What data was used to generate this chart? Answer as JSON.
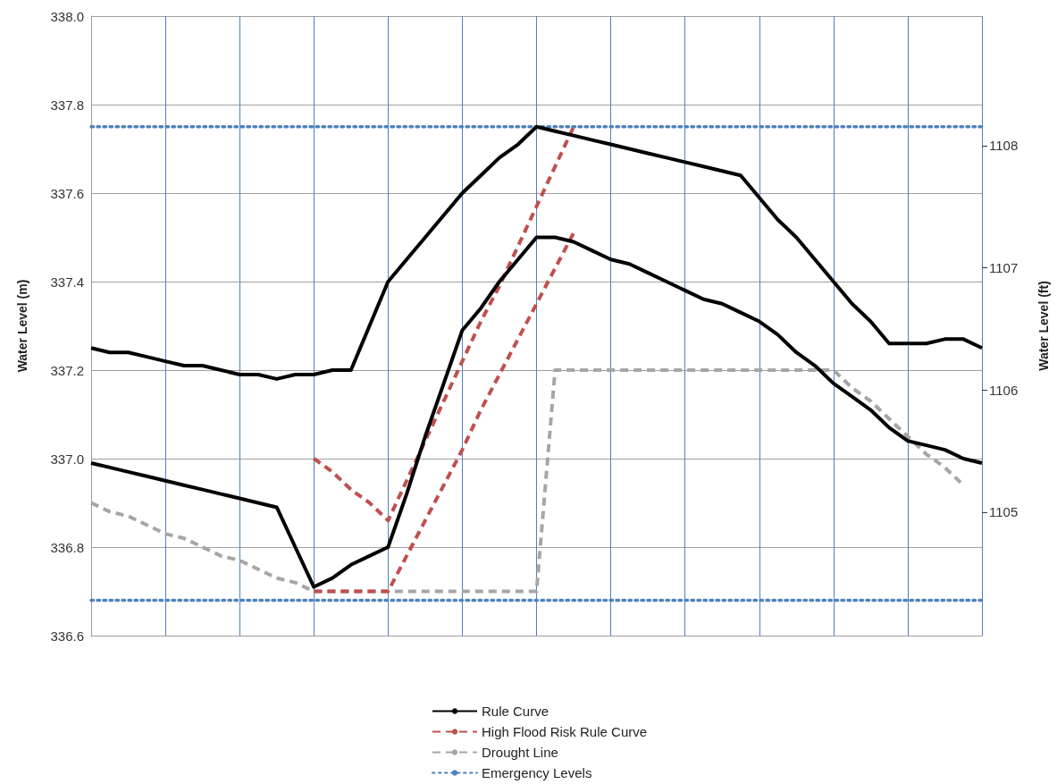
{
  "chart_data": {
    "type": "line",
    "ylabel": "Water Level (m)",
    "y2label": "Water Level (ft)",
    "categories": [
      null,
      null,
      null,
      null,
      null,
      null,
      null,
      null,
      null,
      null,
      null,
      null,
      null,
      null,
      null,
      null,
      null,
      null,
      null,
      null,
      null,
      null,
      null,
      null,
      null,
      null,
      null,
      null,
      null,
      null,
      null,
      null,
      null,
      null,
      null,
      null,
      null,
      null,
      null,
      null,
      null,
      null,
      null,
      null,
      null,
      null,
      null,
      null,
      null
    ],
    "ylim": [
      336.6,
      338.0
    ],
    "yticks": [
      {
        "value": 336.6,
        "label": "336.6"
      },
      {
        "value": 336.8,
        "label": "336.8"
      },
      {
        "value": 337.0,
        "label": "337.0"
      },
      {
        "value": 337.2,
        "label": "337.2"
      },
      {
        "value": 337.4,
        "label": "337.4"
      },
      {
        "value": 337.6,
        "label": "337.6"
      },
      {
        "value": 337.8,
        "label": "337.8"
      },
      {
        "value": 338.0,
        "label": "338.0"
      }
    ],
    "y2lim": [
      1103.99,
      1109.06
    ],
    "y2ticks": [
      1105,
      1106,
      1107,
      1108
    ],
    "tick_labels": "y",
    "grid": true,
    "legend": "bottom",
    "marker": "none",
    "series": [
      {
        "name": "Rule Curve",
        "color": "#000000",
        "line_style": "solid",
        "values": [
          337.25,
          337.24,
          337.24,
          337.23,
          337.22,
          337.21,
          337.21,
          337.2,
          337.19,
          337.19,
          337.18,
          337.19,
          337.19,
          337.2,
          337.2,
          337.3,
          337.4,
          337.45,
          337.5,
          337.55,
          337.6,
          337.64,
          337.68,
          337.71,
          337.75,
          337.74,
          337.73,
          337.72,
          337.71,
          337.7,
          337.69,
          337.68,
          337.67,
          337.66,
          337.65,
          337.64,
          337.59,
          337.54,
          337.5,
          337.45,
          337.4,
          337.35,
          337.31,
          337.26,
          337.26,
          337.26,
          337.27,
          337.27,
          337.25
        ]
      },
      {
        "color": "#000000",
        "line_style": "solid",
        "values": [
          336.99,
          336.98,
          336.97,
          336.96,
          336.95,
          336.94,
          336.93,
          336.92,
          336.91,
          336.9,
          336.89,
          336.8,
          336.71,
          336.73,
          336.76,
          336.78,
          336.8,
          336.92,
          337.05,
          337.17,
          337.29,
          337.34,
          337.4,
          337.45,
          337.5,
          337.5,
          337.49,
          337.47,
          337.45,
          337.44,
          337.42,
          337.4,
          337.38,
          337.36,
          337.35,
          337.33,
          337.31,
          337.28,
          337.24,
          337.21,
          337.17,
          337.14,
          337.11,
          337.07,
          337.04,
          337.03,
          337.02,
          337.0,
          336.99
        ]
      },
      {
        "name": "High Flood Risk Rule Curve",
        "color": "#c0504d",
        "line_style": "dashed",
        "values": [
          null,
          null,
          null,
          null,
          null,
          null,
          null,
          null,
          null,
          null,
          null,
          null,
          337.0,
          336.97,
          336.93,
          336.9,
          336.86,
          336.95,
          337.04,
          337.13,
          337.22,
          337.31,
          337.39,
          337.48,
          337.57,
          337.66,
          337.75,
          null,
          null,
          null,
          null,
          null,
          null,
          null,
          null,
          null,
          null,
          null,
          null,
          null,
          null,
          null,
          null,
          null,
          null,
          null,
          null,
          null,
          null
        ]
      },
      {
        "color": "#c0504d",
        "line_style": "dashed",
        "values": [
          null,
          null,
          null,
          null,
          null,
          null,
          null,
          null,
          null,
          null,
          null,
          null,
          336.7,
          336.7,
          336.7,
          336.7,
          336.7,
          336.78,
          336.86,
          336.94,
          337.02,
          337.11,
          337.19,
          337.27,
          337.35,
          337.43,
          337.51,
          null,
          null,
          null,
          null,
          null,
          null,
          null,
          null,
          null,
          null,
          null,
          null,
          null,
          null,
          null,
          null,
          null,
          null,
          null,
          null,
          null,
          null
        ]
      },
      {
        "name": "Drought Line",
        "color": "#a6a6a6",
        "line_style": "dashed",
        "values": [
          336.9,
          336.88,
          336.87,
          336.85,
          336.83,
          336.82,
          336.8,
          336.78,
          336.77,
          336.75,
          336.73,
          336.72,
          336.7,
          336.7,
          336.7,
          336.7,
          336.7,
          336.7,
          336.7,
          336.7,
          336.7,
          336.7,
          336.7,
          336.7,
          336.7,
          337.2,
          337.2,
          337.2,
          337.2,
          337.2,
          337.2,
          337.2,
          337.2,
          337.2,
          337.2,
          337.2,
          337.2,
          337.2,
          337.2,
          337.2,
          337.2,
          337.16,
          337.13,
          337.09,
          337.05,
          337.01,
          336.98,
          336.94,
          null
        ]
      },
      {
        "name": "Emergency Levels",
        "color": "#4f81bd",
        "line_style": "dotted",
        "values": [
          337.75,
          337.75,
          337.75,
          337.75,
          337.75,
          337.75,
          337.75,
          337.75,
          337.75,
          337.75,
          337.75,
          337.75,
          337.75,
          337.75,
          337.75,
          337.75,
          337.75,
          337.75,
          337.75,
          337.75,
          337.75,
          337.75,
          337.75,
          337.75,
          337.75,
          337.75,
          337.75,
          337.75,
          337.75,
          337.75,
          337.75,
          337.75,
          337.75,
          337.75,
          337.75,
          337.75,
          337.75,
          337.75,
          337.75,
          337.75,
          337.75,
          337.75,
          337.75,
          337.75,
          337.75,
          337.75,
          337.75,
          337.75,
          337.75
        ]
      },
      {
        "color": "#4f81bd",
        "line_style": "dotted",
        "values": [
          336.68,
          336.68,
          336.68,
          336.68,
          336.68,
          336.68,
          336.68,
          336.68,
          336.68,
          336.68,
          336.68,
          336.68,
          336.68,
          336.68,
          336.68,
          336.68,
          336.68,
          336.68,
          336.68,
          336.68,
          336.68,
          336.68,
          336.68,
          336.68,
          336.68,
          336.68,
          336.68,
          336.68,
          336.68,
          336.68,
          336.68,
          336.68,
          336.68,
          336.68,
          336.68,
          336.68,
          336.68,
          336.68,
          336.68,
          336.68,
          336.68,
          336.68,
          336.68,
          336.68,
          336.68,
          336.68,
          336.68,
          336.68,
          336.68
        ]
      }
    ]
  }
}
